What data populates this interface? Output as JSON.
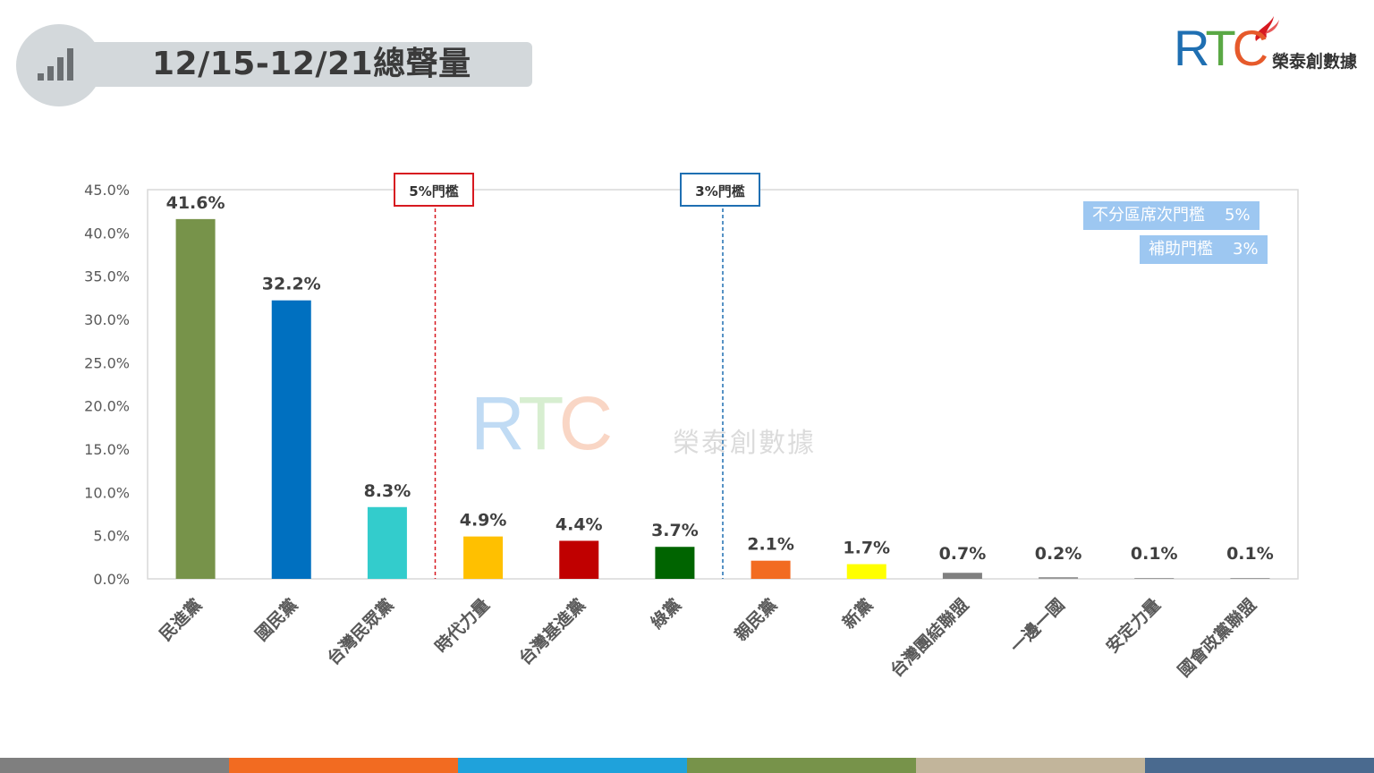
{
  "header": {
    "title": "12/15-12/21總聲量",
    "logo_text": "RTC",
    "logo_subtitle": "榮泰創數據"
  },
  "watermark": {
    "text": "RTC",
    "subtitle": "榮泰創數據"
  },
  "thresholds": [
    {
      "label": "5%門檻",
      "color": "#d71920"
    },
    {
      "label": "3%門檻",
      "color": "#1f6fb2"
    }
  ],
  "legend": [
    {
      "label": "不分區席次門檻",
      "value": "5%"
    },
    {
      "label": "補助門檻",
      "value": "3%"
    }
  ],
  "chart_data": {
    "type": "bar",
    "title": "",
    "xlabel": "",
    "ylabel": "",
    "ylim": [
      0,
      45
    ],
    "yticks": [
      "0.0%",
      "5.0%",
      "10.0%",
      "15.0%",
      "20.0%",
      "25.0%",
      "30.0%",
      "35.0%",
      "40.0%",
      "45.0%"
    ],
    "categories": [
      "民進黨",
      "國民黨",
      "台灣民眾黨",
      "時代力量",
      "台灣基進黨",
      "綠黨",
      "親民黨",
      "新黨",
      "台灣團結聯盟",
      "一邊一國",
      "安定力量",
      "國會政黨聯盟"
    ],
    "values": [
      41.6,
      32.2,
      8.3,
      4.9,
      4.4,
      3.7,
      2.1,
      1.7,
      0.7,
      0.2,
      0.1,
      0.1
    ],
    "value_labels": [
      "41.6%",
      "32.2%",
      "8.3%",
      "4.9%",
      "4.4%",
      "3.7%",
      "2.1%",
      "1.7%",
      "0.7%",
      "0.2%",
      "0.1%",
      "0.1%"
    ],
    "colors": [
      "#77934a",
      "#0070c0",
      "#33cccc",
      "#ffc000",
      "#c00000",
      "#006400",
      "#f26b21",
      "#ffff00",
      "#808080",
      "#999999",
      "#999999",
      "#999999"
    ],
    "grid": false
  },
  "footer_colors": [
    "#7f7f7f",
    "#f26b21",
    "#1fa2db",
    "#77934a",
    "#c2b59b",
    "#4a6a8f"
  ]
}
